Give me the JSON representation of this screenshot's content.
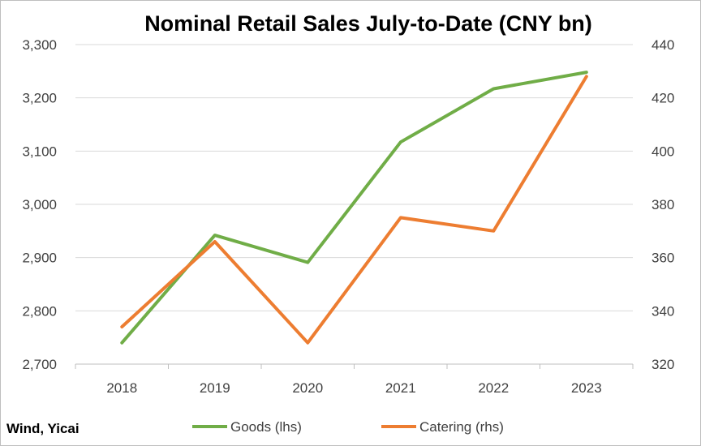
{
  "chart_data": {
    "type": "line",
    "title": "Nominal Retail Sales July-to-Date (CNY bn)",
    "categories": [
      "2018",
      "2019",
      "2020",
      "2021",
      "2022",
      "2023"
    ],
    "y_left": {
      "min": 2700,
      "max": 3300,
      "step": 100,
      "tick_labels": [
        "2,700",
        "2,800",
        "2,900",
        "3,000",
        "3,100",
        "3,200",
        "3,300"
      ]
    },
    "y_right": {
      "min": 320,
      "max": 440,
      "step": 20,
      "tick_labels": [
        "320",
        "340",
        "360",
        "380",
        "400",
        "420",
        "440"
      ]
    },
    "grid": true,
    "legend_position": "bottom",
    "series": [
      {
        "name": "Goods (lhs)",
        "axis": "left",
        "color": "#70ad47",
        "values": [
          2740,
          2942,
          2891,
          3117,
          3217,
          3248
        ]
      },
      {
        "name": "Catering (rhs)",
        "axis": "right",
        "color": "#ed7d31",
        "values": [
          334,
          366,
          328,
          375,
          370,
          428
        ]
      }
    ],
    "source": "Wind, Yicai"
  }
}
